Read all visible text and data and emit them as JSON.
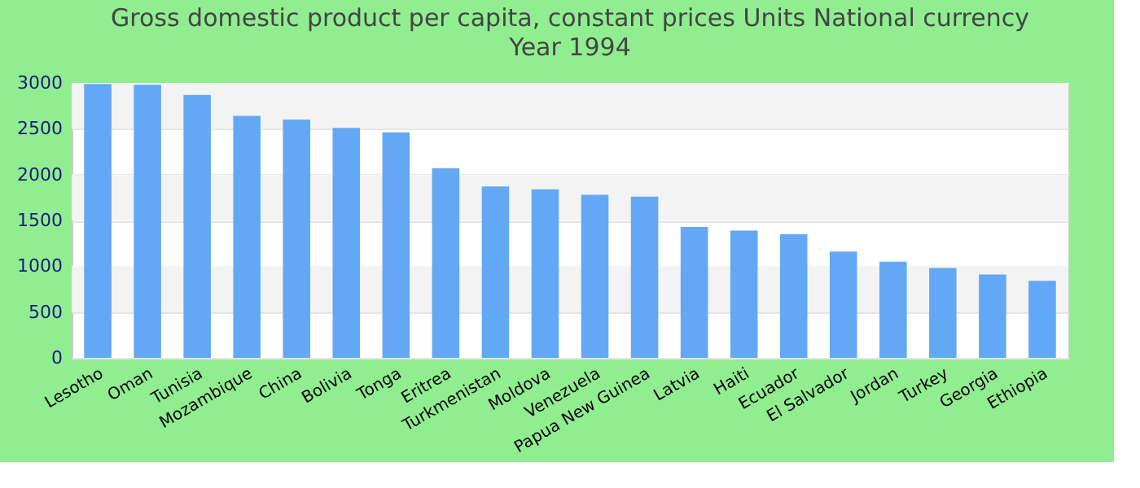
{
  "chart_data": {
    "type": "bar",
    "title": "Gross domestic product per capita, constant prices Units National currency",
    "subtitle": "Year 1994",
    "categories": [
      "Lesotho",
      "Oman",
      "Tunisia",
      "Mozambique",
      "China",
      "Bolivia",
      "Tonga",
      "Eritrea",
      "Turkmenistan",
      "Moldova",
      "Venezuela",
      "Papua New Guinea",
      "Latvia",
      "Haiti",
      "Ecuador",
      "El Salvador",
      "Jordan",
      "Turkey",
      "Georgia",
      "Ethiopia"
    ],
    "values": [
      2990,
      2980,
      2870,
      2640,
      2600,
      2510,
      2460,
      2070,
      1870,
      1840,
      1780,
      1760,
      1430,
      1390,
      1350,
      1160,
      1050,
      980,
      910,
      840
    ],
    "color": "#63a8f5",
    "ylim": [
      0,
      3000
    ],
    "yticks": [
      0,
      500,
      1000,
      1500,
      2000,
      2500,
      3000
    ],
    "grid": "y"
  }
}
